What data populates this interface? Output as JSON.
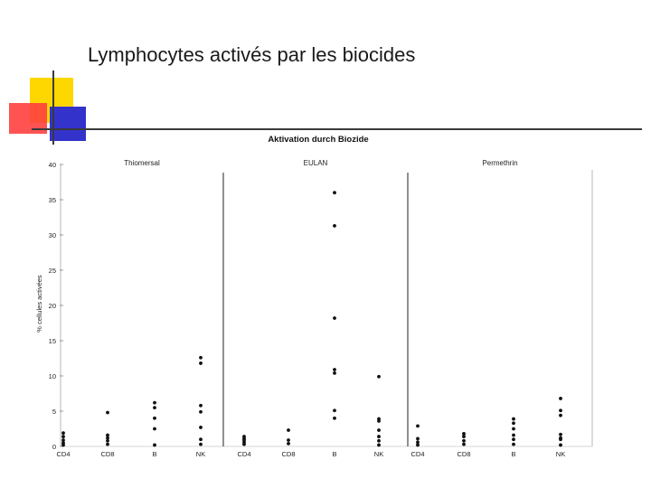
{
  "slide": {
    "title": "Lymphocytes activés par les biocides"
  },
  "colors": {
    "deco_yellow": "#FFD700",
    "deco_red": "#FF4040",
    "deco_blue": "#3333CC",
    "rule_dark": "#3a3a3a",
    "points": "#111111"
  },
  "chart_data": {
    "type": "scatter",
    "title": "Aktivation durch Biozide",
    "ylabel": "% cellules activées",
    "ylim": [
      0,
      40
    ],
    "yticks": [
      0,
      5,
      10,
      15,
      20,
      25,
      30,
      35,
      40
    ],
    "grid": false,
    "panels": [
      {
        "name": "Thiomersal",
        "categories": [
          {
            "label": "CD4",
            "values": [
              0.2,
              0.5,
              0.9,
              1.4,
              1.9
            ]
          },
          {
            "label": "CD8",
            "values": [
              0.3,
              0.8,
              1.2,
              1.6,
              4.8
            ]
          },
          {
            "label": "B",
            "values": [
              0.2,
              2.5,
              4.0,
              5.5,
              6.2
            ]
          },
          {
            "label": "NK",
            "values": [
              0.3,
              1.0,
              2.7,
              4.9,
              5.8,
              11.8,
              12.6
            ]
          }
        ]
      },
      {
        "name": "EULAN",
        "categories": [
          {
            "label": "CD4",
            "values": [
              0.3,
              0.6,
              0.9,
              1.1,
              1.4
            ]
          },
          {
            "label": "CD8",
            "values": [
              0.4,
              0.9,
              2.3
            ]
          },
          {
            "label": "B",
            "values": [
              4.0,
              5.1,
              10.4,
              10.9,
              18.2,
              31.3,
              36.0
            ]
          },
          {
            "label": "NK",
            "values": [
              0.2,
              0.8,
              1.4,
              2.3,
              3.6,
              3.9,
              9.9
            ]
          }
        ]
      },
      {
        "name": "Permethrin",
        "categories": [
          {
            "label": "CD4",
            "values": [
              0.2,
              0.6,
              1.1,
              2.9
            ]
          },
          {
            "label": "CD8",
            "values": [
              0.3,
              0.8,
              1.4,
              1.8
            ]
          },
          {
            "label": "B",
            "values": [
              0.3,
              1.0,
              1.6,
              2.5,
              3.3,
              3.9
            ]
          },
          {
            "label": "NK",
            "values": [
              0.2,
              1.0,
              1.2,
              1.7,
              4.4,
              5.1,
              6.8
            ]
          }
        ]
      }
    ]
  }
}
